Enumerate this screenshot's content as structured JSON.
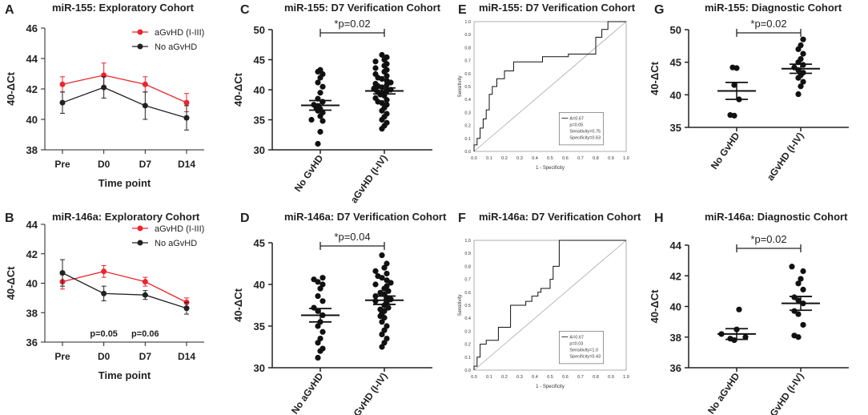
{
  "figure": {
    "panels": [
      {
        "letter": "A",
        "title": "miR-155: Exploratory Cohort",
        "type": "line",
        "ylabel": "40-ΔCt",
        "xlabel": "Time point",
        "ylim": [
          38,
          46
        ],
        "yticks": [
          38,
          40,
          42,
          44,
          46
        ],
        "categories": [
          "Pre",
          "D0",
          "D7",
          "D14"
        ],
        "series": [
          {
            "name": "aGvHD (I-III)",
            "color": "#e8262d",
            "values": [
              42.3,
              42.9,
              42.3,
              41.1
            ],
            "err": [
              0.5,
              0.8,
              0.5,
              0.6
            ]
          },
          {
            "name": "No aGvHD",
            "color": "#222222",
            "values": [
              41.1,
              42.1,
              40.9,
              40.1
            ],
            "err": [
              0.7,
              0.7,
              0.9,
              0.8
            ]
          }
        ],
        "annotations": []
      },
      {
        "letter": "B",
        "title": "miR-146a: Exploratory Cohort",
        "type": "line",
        "ylabel": "40-ΔCt",
        "xlabel": "Time point",
        "ylim": [
          36,
          44
        ],
        "yticks": [
          36,
          38,
          40,
          42,
          44
        ],
        "categories": [
          "Pre",
          "D0",
          "D7",
          "D14"
        ],
        "series": [
          {
            "name": "aGvHD (I-III)",
            "color": "#e8262d",
            "values": [
              40.1,
              40.8,
              40.1,
              38.7
            ],
            "err": [
              0.5,
              0.4,
              0.3,
              0.3
            ]
          },
          {
            "name": "No aGvHD",
            "color": "#222222",
            "values": [
              40.7,
              39.3,
              39.2,
              38.3
            ],
            "err": [
              0.9,
              0.5,
              0.3,
              0.4
            ]
          }
        ],
        "annotations": [
          {
            "text": "p=0.05",
            "x": "D0"
          },
          {
            "text": "p=0.06",
            "x": "D7"
          }
        ]
      },
      {
        "letter": "C",
        "title": "miR-155: D7 Verification Cohort",
        "type": "scatter",
        "ylabel": "40-ΔCt",
        "ylim": [
          30,
          50
        ],
        "yticks": [
          30,
          35,
          40,
          45,
          50
        ],
        "categories": [
          "No GvHD",
          "aGvHD (I-IV)"
        ],
        "sig": "*p=0.02",
        "groups": [
          {
            "values": [
              31,
              33,
              34.8,
              35,
              35.6,
              36.2,
              36.5,
              36.8,
              37,
              37.3,
              37.5,
              38,
              38.5,
              39.5,
              40.5,
              41.2,
              42,
              42.6,
              43,
              43.3
            ],
            "mean": 37.4,
            "sem": 0.8
          },
          {
            "values": [
              33.5,
              34,
              34.5,
              35,
              35.5,
              36,
              36.5,
              37,
              37.5,
              37.8,
              38,
              38.3,
              38.6,
              39,
              39.2,
              39.4,
              39.6,
              39.8,
              40,
              40,
              40.2,
              40.4,
              40.6,
              40.8,
              41,
              41.2,
              41.5,
              41.8,
              42,
              42.3,
              42.6,
              43,
              43.3,
              43.6,
              44,
              44.3,
              44.7,
              45,
              45.4,
              45.8
            ],
            "mean": 39.8,
            "sem": 0.5
          }
        ]
      },
      {
        "letter": "D",
        "title": "miR-146a: D7 Verification Cohort",
        "type": "scatter",
        "ylabel": "40-ΔCt",
        "ylim": [
          30,
          45
        ],
        "yticks": [
          30,
          35,
          40,
          45
        ],
        "categories": [
          "No aGvHD",
          "aGvHD (I-IV)"
        ],
        "sig": "*p=0.04",
        "groups": [
          {
            "values": [
              31.2,
              32,
              32.3,
              33,
              33.5,
              34.3,
              35,
              35.5,
              36.3,
              36.8,
              37.2,
              38,
              38.6,
              39.5,
              40,
              40.3,
              40.6,
              40.8
            ],
            "mean": 36.3,
            "sem": 0.8
          },
          {
            "values": [
              32.5,
              33,
              33.5,
              34,
              34.5,
              35,
              35.5,
              36,
              36.2,
              36.5,
              36.8,
              37,
              37.2,
              37.5,
              37.8,
              38,
              38.2,
              38.4,
              38.6,
              38.8,
              39,
              39.2,
              39.5,
              39.8,
              40,
              40.2,
              40.5,
              40.8,
              41,
              41.3,
              41.6,
              42,
              42.5,
              43.5
            ],
            "mean": 38.1,
            "sem": 0.5
          }
        ]
      },
      {
        "letter": "E",
        "title": "miR-155: D7 Verification Cohort",
        "type": "roc",
        "xlabel": "1 - Specificity",
        "ylabel": "Sensitivity",
        "ticks": [
          "0.0",
          "0.1",
          "0.2",
          "0.3",
          "0.4",
          "0.5",
          "0.6",
          "0.7",
          "0.8",
          "0.9",
          "1.0"
        ],
        "curve": [
          [
            0,
            0
          ],
          [
            0,
            0.05
          ],
          [
            0.02,
            0.05
          ],
          [
            0.02,
            0.1
          ],
          [
            0.04,
            0.1
          ],
          [
            0.04,
            0.18
          ],
          [
            0.06,
            0.18
          ],
          [
            0.06,
            0.25
          ],
          [
            0.08,
            0.25
          ],
          [
            0.08,
            0.32
          ],
          [
            0.1,
            0.32
          ],
          [
            0.1,
            0.44
          ],
          [
            0.12,
            0.44
          ],
          [
            0.12,
            0.5
          ],
          [
            0.15,
            0.5
          ],
          [
            0.15,
            0.56
          ],
          [
            0.2,
            0.56
          ],
          [
            0.2,
            0.62
          ],
          [
            0.26,
            0.62
          ],
          [
            0.26,
            0.69
          ],
          [
            0.45,
            0.69
          ],
          [
            0.45,
            0.73
          ],
          [
            0.62,
            0.73
          ],
          [
            0.62,
            0.75
          ],
          [
            0.8,
            0.75
          ],
          [
            0.8,
            0.88
          ],
          [
            0.84,
            0.88
          ],
          [
            0.84,
            0.94
          ],
          [
            0.88,
            0.94
          ],
          [
            0.88,
            1
          ],
          [
            1,
            1
          ]
        ],
        "legend": [
          "A=0.67",
          "p=0.05",
          "Sensitivity=0.75",
          "Specificity=0.63"
        ]
      },
      {
        "letter": "F",
        "title": "miR-146a: D7 Verification Cohort",
        "type": "roc",
        "xlabel": "1 - Specificity",
        "ylabel": "Sensitivity",
        "ticks": [
          "0.0",
          "0.1",
          "0.2",
          "0.3",
          "0.4",
          "0.5",
          "0.6",
          "0.7",
          "0.8",
          "0.9",
          "1.0"
        ],
        "curve": [
          [
            0,
            0
          ],
          [
            0,
            0.03
          ],
          [
            0.02,
            0.03
          ],
          [
            0.02,
            0.1
          ],
          [
            0.04,
            0.1
          ],
          [
            0.04,
            0.2
          ],
          [
            0.08,
            0.2
          ],
          [
            0.08,
            0.23
          ],
          [
            0.16,
            0.23
          ],
          [
            0.16,
            0.33
          ],
          [
            0.24,
            0.33
          ],
          [
            0.24,
            0.5
          ],
          [
            0.34,
            0.5
          ],
          [
            0.34,
            0.53
          ],
          [
            0.38,
            0.53
          ],
          [
            0.38,
            0.57
          ],
          [
            0.42,
            0.57
          ],
          [
            0.42,
            0.6
          ],
          [
            0.44,
            0.6
          ],
          [
            0.44,
            0.63
          ],
          [
            0.5,
            0.63
          ],
          [
            0.5,
            0.7
          ],
          [
            0.52,
            0.7
          ],
          [
            0.52,
            0.8
          ],
          [
            0.56,
            0.8
          ],
          [
            0.56,
            1
          ],
          [
            1,
            1
          ]
        ],
        "legend": [
          "A=0.67",
          "p=0.03",
          "Sensitivity=1.0",
          "Specificity=0.43"
        ]
      },
      {
        "letter": "G",
        "title": "miR-155: Diagnostic Cohort",
        "type": "scatter",
        "ylabel": "40-ΔCt",
        "ylim": [
          35,
          50
        ],
        "yticks": [
          35,
          40,
          45,
          50
        ],
        "categories": [
          "No GvHD",
          "aGvHD (I-IV)"
        ],
        "sig": "*p=0.02",
        "groups": [
          {
            "values": [
              36.8,
              36.9,
              39.3,
              41.5,
              44.1,
              44.2
            ],
            "mean": 40.6,
            "sem": 1.3
          },
          {
            "values": [
              40.1,
              41.3,
              42,
              42.6,
              43,
              43.4,
              43.8,
              44.2,
              44.6,
              45,
              45.5,
              46.3,
              47,
              47.6,
              48.5
            ],
            "mean": 44,
            "sem": 0.7
          }
        ]
      },
      {
        "letter": "H",
        "title": "miR-146a: Diagnostic Cohort",
        "type": "scatter",
        "ylabel": "40-ΔCt",
        "ylim": [
          36,
          44
        ],
        "yticks": [
          36,
          38,
          40,
          42,
          44
        ],
        "categories": [
          "No aGvHD",
          "aGvHD (I-IV)"
        ],
        "sig": "*p=0.02",
        "groups": [
          {
            "values": [
              37.8,
              37.9,
              38,
              38.2,
              38.5,
              39.8
            ],
            "mean": 38.2,
            "sem": 0.35
          },
          {
            "values": [
              38,
              38.1,
              38.8,
              39.5,
              39.7,
              40.2,
              40.4,
              40.6,
              41.1,
              41.5,
              41.8,
              42.3,
              42.6
            ],
            "mean": 40.2,
            "sem": 0.45
          }
        ]
      }
    ]
  },
  "chart_data": [
    {
      "type": "line",
      "title": "miR-155: Exploratory Cohort",
      "xlabel": "Time point",
      "ylabel": "40-ΔCt",
      "ylim": [
        38,
        46
      ],
      "categories": [
        "Pre",
        "D0",
        "D7",
        "D14"
      ],
      "series": [
        {
          "name": "aGvHD (I-III)",
          "values": [
            42.3,
            42.9,
            42.3,
            41.1
          ]
        },
        {
          "name": "No aGvHD",
          "values": [
            41.1,
            42.1,
            40.9,
            40.1
          ]
        }
      ]
    },
    {
      "type": "line",
      "title": "miR-146a: Exploratory Cohort",
      "xlabel": "Time point",
      "ylabel": "40-ΔCt",
      "ylim": [
        36,
        44
      ],
      "categories": [
        "Pre",
        "D0",
        "D7",
        "D14"
      ],
      "series": [
        {
          "name": "aGvHD (I-III)",
          "values": [
            40.1,
            40.8,
            40.1,
            38.7
          ]
        },
        {
          "name": "No aGvHD",
          "values": [
            40.7,
            39.3,
            39.2,
            38.3
          ]
        }
      ],
      "annotations": [
        "p=0.05",
        "p=0.06"
      ]
    },
    {
      "type": "scatter",
      "title": "miR-155: D7 Verification Cohort",
      "ylabel": "40-ΔCt",
      "ylim": [
        30,
        50
      ],
      "categories": [
        "No GvHD",
        "aGvHD (I-IV)"
      ],
      "means": [
        37.4,
        39.8
      ],
      "annotation": "*p=0.02"
    },
    {
      "type": "scatter",
      "title": "miR-146a: D7 Verification Cohort",
      "ylabel": "40-ΔCt",
      "ylim": [
        30,
        45
      ],
      "categories": [
        "No aGvHD",
        "aGvHD (I-IV)"
      ],
      "means": [
        36.3,
        38.1
      ],
      "annotation": "*p=0.04"
    },
    {
      "type": "line",
      "title": "miR-155: D7 Verification Cohort",
      "xlabel": "1 - Specificity",
      "ylabel": "Sensitivity",
      "legend": [
        "A=0.67",
        "p=0.05",
        "Sensitivity=0.75",
        "Specificity=0.63"
      ]
    },
    {
      "type": "line",
      "title": "miR-146a: D7 Verification Cohort",
      "xlabel": "1 - Specificity",
      "ylabel": "Sensitivity",
      "legend": [
        "A=0.67",
        "p=0.03",
        "Sensitivity=1.0",
        "Specificity=0.43"
      ]
    },
    {
      "type": "scatter",
      "title": "miR-155: Diagnostic Cohort",
      "ylabel": "40-ΔCt",
      "ylim": [
        35,
        50
      ],
      "categories": [
        "No GvHD",
        "aGvHD (I-IV)"
      ],
      "means": [
        40.6,
        44.0
      ],
      "annotation": "*p=0.02"
    },
    {
      "type": "scatter",
      "title": "miR-146a: Diagnostic Cohort",
      "ylabel": "40-ΔCt",
      "ylim": [
        36,
        44
      ],
      "categories": [
        "No aGvHD",
        "aGvHD (I-IV)"
      ],
      "means": [
        38.2,
        40.2
      ],
      "annotation": "*p=0.02"
    }
  ]
}
